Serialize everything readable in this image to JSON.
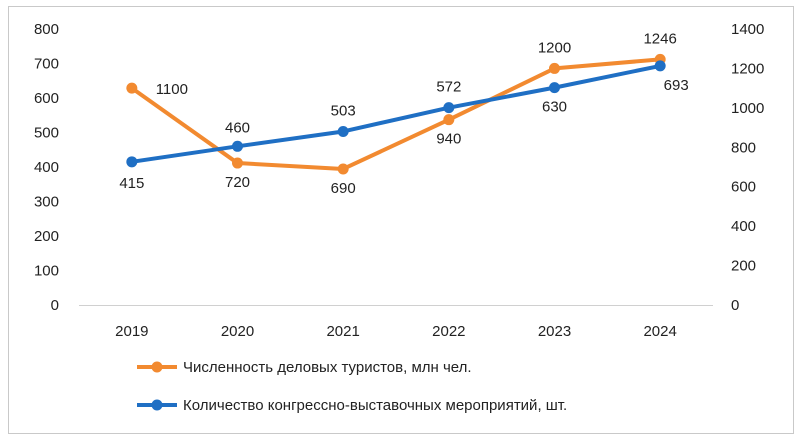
{
  "chart_data": {
    "type": "line",
    "title": "",
    "x": [
      "2019",
      "2020",
      "2021",
      "2022",
      "2023",
      "2024"
    ],
    "y_left_ticks": [
      "0",
      "100",
      "200",
      "300",
      "400",
      "500",
      "600",
      "700",
      "800"
    ],
    "y_right_ticks": [
      "0",
      "200",
      "400",
      "600",
      "800",
      "1000",
      "1200",
      "1400"
    ],
    "y_left_range": [
      0,
      800
    ],
    "y_right_range": [
      0,
      1400
    ],
    "grid": false,
    "legend_position": "bottom",
    "series": [
      {
        "name": "Численность деловых туристов, млн чел.",
        "axis": "right",
        "color": "#F28A30",
        "values": [
          1100,
          720,
          690,
          940,
          1200,
          1246
        ],
        "labels": [
          "1100",
          "720",
          "690",
          "940",
          "1200",
          "1246"
        ]
      },
      {
        "name": "Количество конгрессно-выставочных мероприятий, шт.",
        "axis": "left",
        "color": "#1F6FC4",
        "values": [
          415,
          460,
          503,
          572,
          630,
          693
        ],
        "labels": [
          "415",
          "460",
          "503",
          "572",
          "630",
          "693"
        ]
      }
    ]
  }
}
